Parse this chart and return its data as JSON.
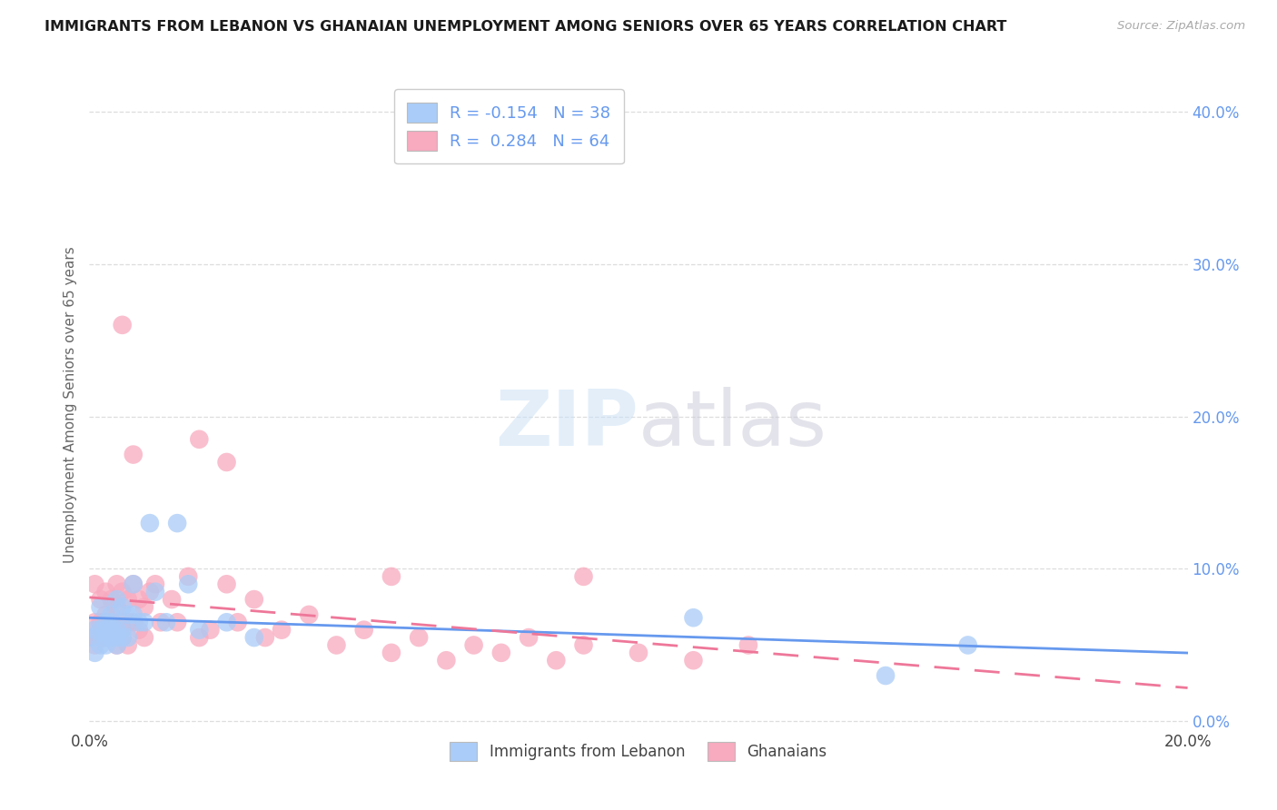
{
  "title": "IMMIGRANTS FROM LEBANON VS GHANAIAN UNEMPLOYMENT AMONG SENIORS OVER 65 YEARS CORRELATION CHART",
  "source": "Source: ZipAtlas.com",
  "ylabel": "Unemployment Among Seniors over 65 years",
  "xlim": [
    0.0,
    0.2
  ],
  "ylim": [
    -0.005,
    0.42
  ],
  "xticks": [
    0.0,
    0.04,
    0.08,
    0.12,
    0.16,
    0.2
  ],
  "xtick_labels": [
    "0.0%",
    "",
    "",
    "",
    "",
    "20.0%"
  ],
  "ytick_labels_right": [
    "0.0%",
    "10.0%",
    "20.0%",
    "30.0%",
    "40.0%"
  ],
  "yticks_right": [
    0.0,
    0.1,
    0.2,
    0.3,
    0.4
  ],
  "watermark": "ZIPatlas",
  "lebanon_color": "#aaccf8",
  "ghana_color": "#f8aabf",
  "lebanon_line_color": "#6699ee",
  "ghana_line_color": "#ee7799",
  "legend_R_lebanon": "-0.154",
  "legend_N_lebanon": "38",
  "legend_R_ghana": "0.284",
  "legend_N_ghana": "64",
  "lebanon_x": [
    0.0005,
    0.001,
    0.001,
    0.002,
    0.002,
    0.002,
    0.003,
    0.003,
    0.003,
    0.003,
    0.004,
    0.004,
    0.004,
    0.004,
    0.005,
    0.005,
    0.005,
    0.005,
    0.006,
    0.006,
    0.006,
    0.007,
    0.007,
    0.008,
    0.008,
    0.009,
    0.01,
    0.011,
    0.012,
    0.014,
    0.016,
    0.018,
    0.02,
    0.025,
    0.03,
    0.11,
    0.145,
    0.16
  ],
  "lebanon_y": [
    0.055,
    0.045,
    0.06,
    0.06,
    0.075,
    0.05,
    0.06,
    0.065,
    0.055,
    0.05,
    0.07,
    0.06,
    0.055,
    0.065,
    0.08,
    0.06,
    0.055,
    0.05,
    0.075,
    0.06,
    0.055,
    0.07,
    0.055,
    0.09,
    0.07,
    0.065,
    0.065,
    0.13,
    0.085,
    0.065,
    0.13,
    0.09,
    0.06,
    0.065,
    0.055,
    0.068,
    0.03,
    0.05
  ],
  "ghana_x": [
    0.0005,
    0.001,
    0.001,
    0.001,
    0.002,
    0.002,
    0.002,
    0.002,
    0.003,
    0.003,
    0.003,
    0.003,
    0.004,
    0.004,
    0.004,
    0.005,
    0.005,
    0.005,
    0.005,
    0.006,
    0.006,
    0.006,
    0.007,
    0.007,
    0.007,
    0.008,
    0.008,
    0.009,
    0.009,
    0.01,
    0.01,
    0.011,
    0.012,
    0.013,
    0.015,
    0.016,
    0.018,
    0.02,
    0.022,
    0.025,
    0.027,
    0.03,
    0.032,
    0.035,
    0.04,
    0.045,
    0.05,
    0.055,
    0.06,
    0.065,
    0.07,
    0.075,
    0.08,
    0.085,
    0.09,
    0.1,
    0.11,
    0.12,
    0.006,
    0.008,
    0.02,
    0.025,
    0.055,
    0.09
  ],
  "ghana_y": [
    0.055,
    0.09,
    0.065,
    0.05,
    0.08,
    0.065,
    0.055,
    0.06,
    0.085,
    0.07,
    0.06,
    0.055,
    0.08,
    0.065,
    0.055,
    0.09,
    0.075,
    0.06,
    0.05,
    0.085,
    0.065,
    0.055,
    0.08,
    0.065,
    0.05,
    0.09,
    0.065,
    0.08,
    0.06,
    0.075,
    0.055,
    0.085,
    0.09,
    0.065,
    0.08,
    0.065,
    0.095,
    0.055,
    0.06,
    0.09,
    0.065,
    0.08,
    0.055,
    0.06,
    0.07,
    0.05,
    0.06,
    0.045,
    0.055,
    0.04,
    0.05,
    0.045,
    0.055,
    0.04,
    0.05,
    0.045,
    0.04,
    0.05,
    0.26,
    0.175,
    0.185,
    0.17,
    0.095,
    0.095
  ],
  "background_color": "#ffffff",
  "grid_color": "#dddddd"
}
